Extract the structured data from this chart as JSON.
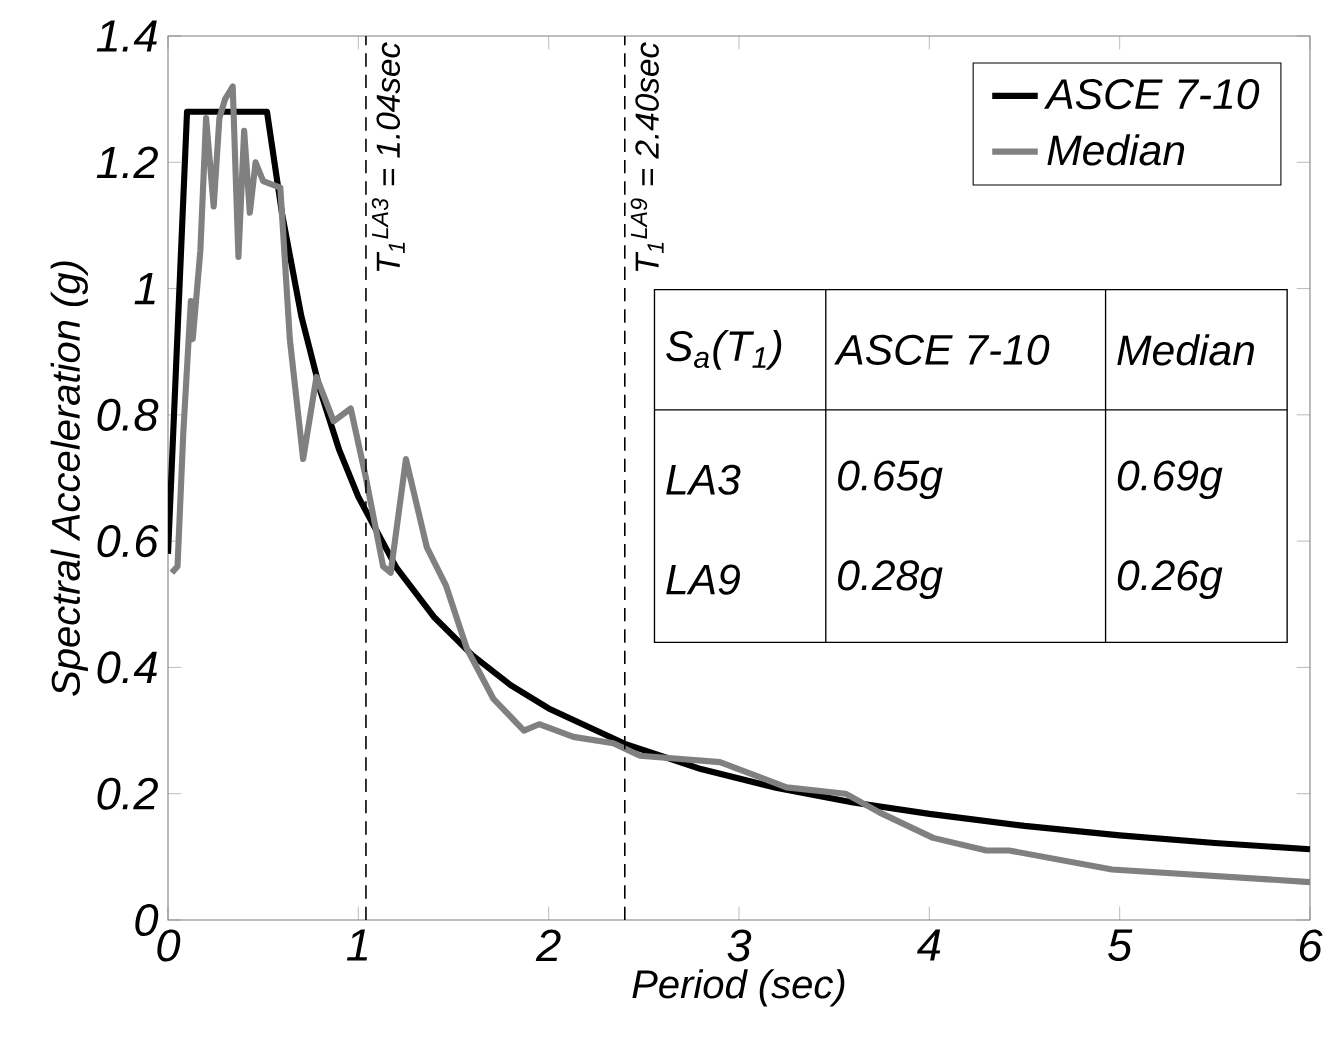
{
  "chart_data": {
    "type": "line",
    "xlabel": "Period (sec)",
    "ylabel": "Spectral Acceleration (g)",
    "xlim": [
      0,
      6
    ],
    "ylim": [
      0,
      1.4
    ],
    "xticks": [
      0,
      1,
      2,
      3,
      4,
      5,
      6
    ],
    "yticks": [
      0,
      0.2,
      0.4,
      0.6,
      0.8,
      1,
      1.2,
      1.4
    ],
    "grid": false,
    "legend": "top right",
    "line_style": "solid",
    "marker": "none",
    "series": [
      {
        "name": "ASCE 7-10",
        "color": "#000000",
        "x": [
          0,
          0.1,
          0.52,
          0.6,
          0.7,
          0.8,
          0.9,
          1.0,
          1.2,
          1.4,
          1.6,
          1.8,
          2.0,
          2.4,
          2.8,
          3.2,
          3.6,
          4.0,
          4.5,
          5.0,
          5.5,
          6.0
        ],
        "values": [
          0.58,
          1.28,
          1.28,
          1.117,
          0.957,
          0.838,
          0.744,
          0.67,
          0.558,
          0.479,
          0.419,
          0.372,
          0.335,
          0.279,
          0.239,
          0.209,
          0.186,
          0.168,
          0.149,
          0.134,
          0.122,
          0.112
        ]
      },
      {
        "name": "Median",
        "color": "#808080",
        "x": [
          0.02,
          0.05,
          0.08,
          0.12,
          0.13,
          0.17,
          0.2,
          0.24,
          0.27,
          0.3,
          0.34,
          0.37,
          0.4,
          0.43,
          0.46,
          0.5,
          0.59,
          0.64,
          0.71,
          0.78,
          0.87,
          0.96,
          1.04,
          1.13,
          1.17,
          1.25,
          1.36,
          1.46,
          1.57,
          1.71,
          1.87,
          1.95,
          2.13,
          2.34,
          2.48,
          2.9,
          3.25,
          3.56,
          3.74,
          4.02,
          4.3,
          4.42,
          4.96,
          6.0
        ],
        "values": [
          0.55,
          0.56,
          0.77,
          0.98,
          0.92,
          1.06,
          1.27,
          1.13,
          1.27,
          1.3,
          1.32,
          1.05,
          1.25,
          1.12,
          1.2,
          1.17,
          1.16,
          0.92,
          0.73,
          0.86,
          0.79,
          0.81,
          0.7,
          0.56,
          0.55,
          0.73,
          0.59,
          0.53,
          0.43,
          0.35,
          0.3,
          0.31,
          0.29,
          0.28,
          0.26,
          0.25,
          0.21,
          0.2,
          0.17,
          0.13,
          0.11,
          0.11,
          0.08,
          0.06
        ]
      }
    ],
    "ref_lines": [
      {
        "axis": "x",
        "value": 1.04,
        "label": "T$_{1}$$^{LA3}$ = 1.04sec",
        "line_style": "dashed",
        "color": "#000000"
      },
      {
        "axis": "x",
        "value": 2.4,
        "label": "T$_{1}$$^{LA9}$ = 2.40sec",
        "line_style": "dashed",
        "color": "#000000"
      }
    ],
    "annotations": [
      "S$_{a}$(T$_{1}$)",
      "ASCE 7-10",
      "Median",
      "LA3",
      "0.65g",
      "0.69g",
      "LA9",
      "0.28g",
      "0.26g"
    ]
  }
}
